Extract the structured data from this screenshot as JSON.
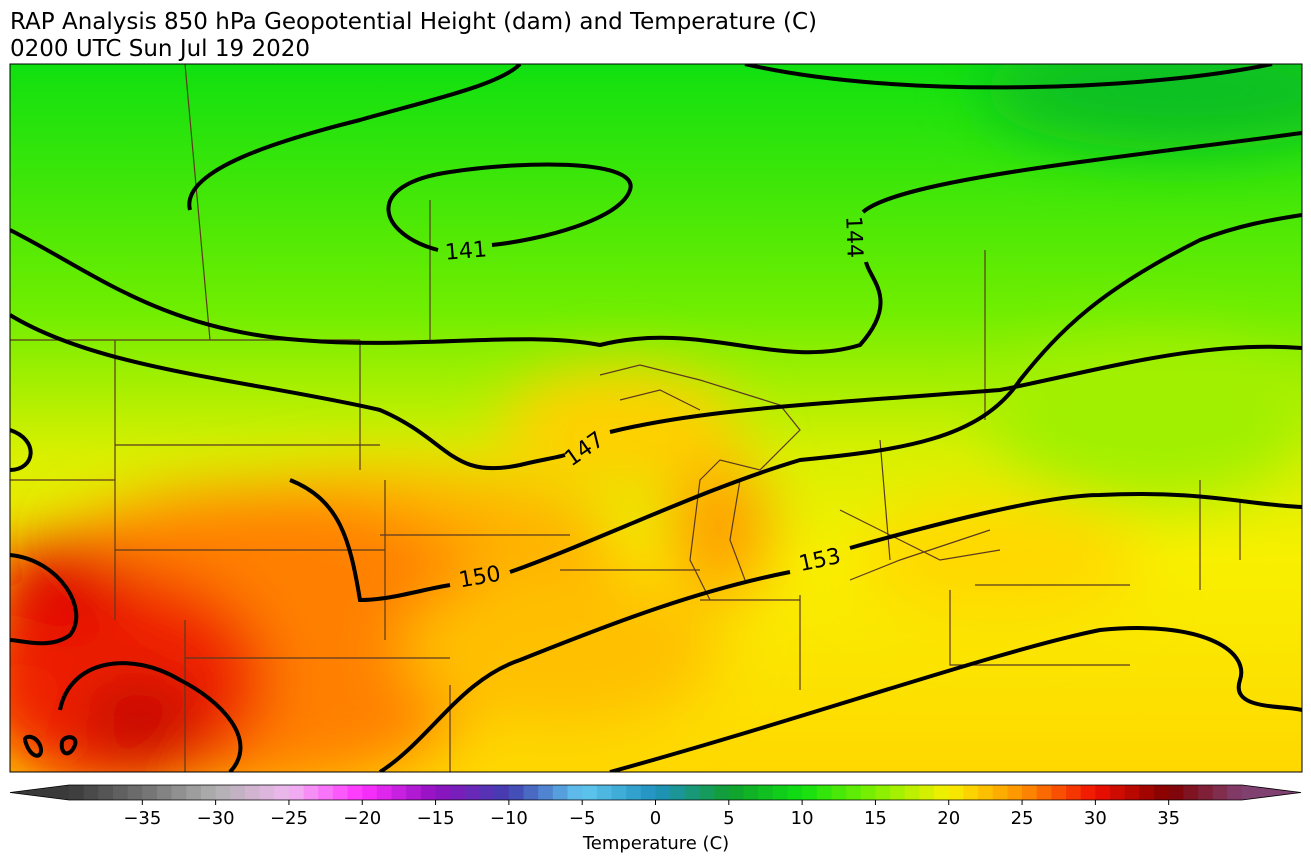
{
  "header": {
    "title": "RAP Analysis 850 hPa Geopotential Height (dam) and Temperature (C)",
    "subtitle": "0200 UTC Sun Jul 19 2020"
  },
  "map": {
    "contour_labels": [
      141,
      144,
      147,
      150,
      153
    ]
  },
  "colorbar": {
    "label": "Temperature (C)",
    "lim": [
      -40,
      40
    ],
    "color_stops": [
      "#3a3a3a",
      "#707070",
      "#b0b0b0",
      "#f0b8f0",
      "#ff30ff",
      "#9010c0",
      "#4040b0",
      "#60c8f0",
      "#2090c0",
      "#10a030",
      "#10e010",
      "#80f000",
      "#f8f000",
      "#ff9000",
      "#f01000",
      "#800000",
      "#804070"
    ],
    "ticks": [
      {
        "value": -35,
        "label": "−35"
      },
      {
        "value": -30,
        "label": "−30"
      },
      {
        "value": -25,
        "label": "−25"
      },
      {
        "value": -20,
        "label": "−20"
      },
      {
        "value": -15,
        "label": "−15"
      },
      {
        "value": -10,
        "label": "−10"
      },
      {
        "value": -5,
        "label": "−5"
      },
      0,
      5,
      10,
      15,
      20,
      25,
      30,
      35
    ]
  }
}
